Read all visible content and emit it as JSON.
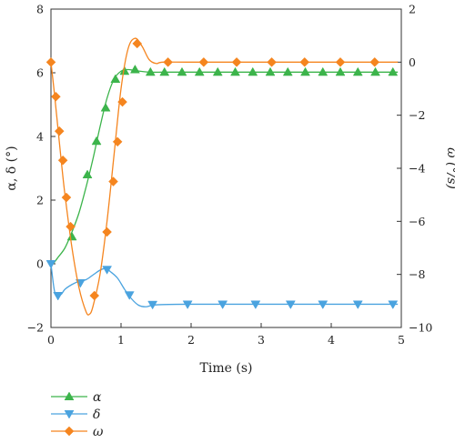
{
  "chart_data": {
    "type": "line",
    "xlabel": "Time (s)",
    "ylabel_left": "α, δ (°)",
    "ylabel_right": "ω (°/s)",
    "xlim": [
      0,
      5
    ],
    "ylim_left": [
      -2,
      8
    ],
    "ylim_right": [
      -10,
      2
    ],
    "x_ticks": [
      0,
      1,
      2,
      3,
      4,
      5
    ],
    "y_ticks_left": [
      -2,
      0,
      2,
      4,
      6,
      8
    ],
    "y_ticks_right": [
      -10,
      -8,
      -6,
      -4,
      -2,
      0,
      2
    ],
    "grid": false,
    "legend_position": "below",
    "series": [
      {
        "name": "α",
        "axis": "left",
        "color": "#3cb44b",
        "marker": "triangle-up",
        "x": [
          0,
          0.03,
          0.1,
          0.2,
          0.3,
          0.4,
          0.5,
          0.6,
          0.7,
          0.8,
          0.9,
          1.0,
          1.1,
          1.2,
          1.4,
          1.6,
          1.8,
          2.0,
          2.5,
          3.0,
          3.5,
          4.0,
          4.5,
          4.95
        ],
        "y": [
          -0.05,
          0.0,
          0.2,
          0.5,
          1.0,
          1.6,
          2.4,
          3.3,
          4.3,
          5.2,
          5.8,
          6.05,
          6.1,
          6.07,
          6.02,
          6.02,
          6.02,
          6.02,
          6.02,
          6.02,
          6.02,
          6.02,
          6.02,
          6.02
        ],
        "markers_x": [
          0.3,
          0.52,
          0.65,
          0.78,
          0.92,
          1.05,
          1.2,
          1.42,
          1.62,
          1.87,
          2.12,
          2.38,
          2.63,
          2.88,
          3.13,
          3.38,
          3.63,
          3.88,
          4.13,
          4.38,
          4.63,
          4.88
        ],
        "markers_y": [
          0.85,
          2.8,
          3.85,
          4.9,
          5.8,
          6.05,
          6.1,
          6.02,
          6.02,
          6.02,
          6.02,
          6.02,
          6.02,
          6.02,
          6.02,
          6.02,
          6.02,
          6.02,
          6.02,
          6.02,
          6.02,
          6.02
        ]
      },
      {
        "name": "δ",
        "axis": "left",
        "color": "#4aa3df",
        "marker": "triangle-down",
        "x": [
          0,
          0.05,
          0.1,
          0.15,
          0.2,
          0.3,
          0.4,
          0.5,
          0.6,
          0.7,
          0.78,
          0.85,
          0.95,
          1.05,
          1.15,
          1.25,
          1.35,
          1.45,
          1.6,
          2.0,
          3.0,
          4.0,
          4.95
        ],
        "y": [
          0.0,
          -0.85,
          -1.0,
          -0.95,
          -0.8,
          -0.65,
          -0.55,
          -0.5,
          -0.35,
          -0.2,
          -0.15,
          -0.25,
          -0.45,
          -0.8,
          -1.1,
          -1.3,
          -1.35,
          -1.3,
          -1.28,
          -1.27,
          -1.27,
          -1.27,
          -1.27
        ],
        "markers_x": [
          0.0,
          0.1,
          0.42,
          0.8,
          1.12,
          1.45,
          1.95,
          2.45,
          2.92,
          3.42,
          3.88,
          4.38,
          4.88
        ],
        "markers_y": [
          0.0,
          -1.0,
          -0.6,
          -0.18,
          -0.98,
          -1.28,
          -1.27,
          -1.27,
          -1.27,
          -1.27,
          -1.27,
          -1.27,
          -1.27
        ]
      },
      {
        "name": "ω",
        "axis": "right",
        "color": "#f5851f",
        "marker": "diamond",
        "x": [
          0,
          0.05,
          0.1,
          0.15,
          0.2,
          0.3,
          0.4,
          0.5,
          0.55,
          0.6,
          0.7,
          0.8,
          0.9,
          1.0,
          1.1,
          1.2,
          1.3,
          1.4,
          1.5,
          1.6,
          2.0,
          3.0,
          4.0,
          4.95
        ],
        "y": [
          0.0,
          -1.2,
          -2.5,
          -3.8,
          -5.0,
          -7.0,
          -8.5,
          -9.4,
          -9.5,
          -9.2,
          -8.0,
          -6.0,
          -3.5,
          -1.0,
          0.5,
          0.9,
          0.6,
          0.1,
          -0.05,
          0.0,
          0.0,
          0.0,
          0.0,
          0.0
        ],
        "markers_x": [
          0.0,
          0.07,
          0.12,
          0.17,
          0.22,
          0.28,
          0.62,
          0.8,
          0.89,
          0.95,
          1.02,
          1.23,
          1.67,
          2.18,
          2.65,
          3.15,
          3.62,
          4.13,
          4.62
        ],
        "markers_y": [
          0.0,
          -1.3,
          -2.6,
          -3.7,
          -5.1,
          -6.2,
          -8.8,
          -6.4,
          -4.5,
          -3.0,
          -1.5,
          0.7,
          0.0,
          0.0,
          0.0,
          0.0,
          0.0,
          0.0,
          0.0
        ]
      }
    ]
  }
}
